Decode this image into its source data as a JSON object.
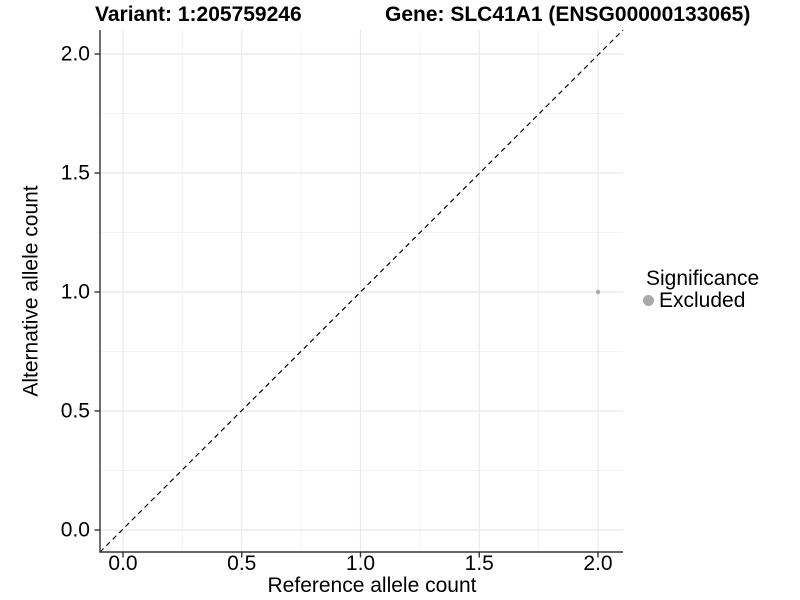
{
  "title": {
    "variant": "Variant: 1:205759246",
    "gene": "Gene: SLC41A1 (ENSG00000133065)"
  },
  "chart_data": {
    "type": "scatter",
    "xlabel": "Reference allele count",
    "ylabel": "Alternative allele count",
    "xlim": [
      -0.1,
      2.1
    ],
    "ylim": [
      -0.1,
      2.1
    ],
    "x_ticks": [
      0.0,
      0.5,
      1.0,
      1.5,
      2.0
    ],
    "x_tick_labels": [
      "0.0",
      "0.5",
      "1.0",
      "1.5",
      "2.0"
    ],
    "x_minor_ticks": [
      0.25,
      0.75,
      1.25,
      1.75
    ],
    "y_ticks": [
      0.0,
      0.5,
      1.0,
      1.5,
      2.0
    ],
    "y_tick_labels": [
      "0.0",
      "0.5",
      "1.0",
      "1.5",
      "2.0"
    ],
    "y_minor_ticks": [
      0.25,
      0.75,
      1.25,
      1.75
    ],
    "grid": true,
    "reference_line": {
      "type": "identity",
      "style": "dashed",
      "color": "#000000"
    },
    "series": [
      {
        "name": "Excluded",
        "color": "#a9a9a9",
        "points": [
          {
            "x": 2.0,
            "y": 1.0
          }
        ]
      }
    ],
    "legend": {
      "title": "Significance",
      "position": "right",
      "items": [
        {
          "label": "Excluded",
          "color": "#a9a9a9",
          "marker": "circle"
        }
      ]
    }
  },
  "colors": {
    "background": "#ffffff",
    "grid_major": "#e8e8e8",
    "grid_minor": "#f3f3f3",
    "axis": "#333333",
    "text": "#000000"
  }
}
